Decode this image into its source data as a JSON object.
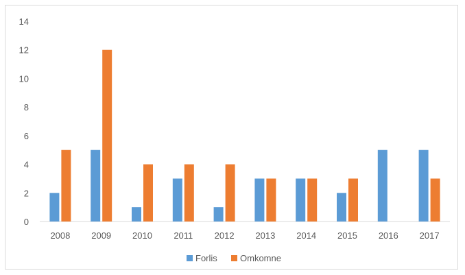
{
  "chart_data": {
    "type": "bar",
    "categories": [
      "2008",
      "2009",
      "2010",
      "2011",
      "2012",
      "2013",
      "2014",
      "2015",
      "2016",
      "2017"
    ],
    "series": [
      {
        "name": "Forlis",
        "values": [
          2,
          5,
          1,
          3,
          1,
          3,
          3,
          2,
          5,
          5
        ],
        "color": "#5b9bd5"
      },
      {
        "name": "Omkomne",
        "values": [
          5,
          12,
          4,
          4,
          4,
          3,
          3,
          3,
          0,
          3
        ],
        "color": "#ed7d31"
      }
    ],
    "yticks": [
      "0",
      "2",
      "4",
      "6",
      "8",
      "10",
      "12",
      "14"
    ],
    "ylim": [
      0,
      14
    ],
    "grid": false,
    "legend_position": "bottom",
    "title": "",
    "xlabel": "",
    "ylabel": ""
  }
}
